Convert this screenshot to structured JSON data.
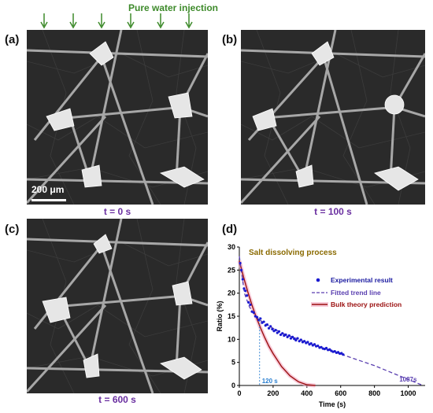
{
  "header": {
    "injection_title": "Pure water injection"
  },
  "panels": [
    {
      "letter": "(a)",
      "time": "t = 0 s",
      "scalebar": "200 μm"
    },
    {
      "letter": "(b)",
      "time": "t = 100 s"
    },
    {
      "letter": "(c)",
      "time": "t = 600 s"
    },
    {
      "letter": "(d)"
    }
  ],
  "colors": {
    "green": "#3d8a2a",
    "purple": "#6a2fa0",
    "exp_points": "#1a1ad0",
    "trend": "#5a3fb0",
    "theory": "#9b1010",
    "theory_band": "#f2a6c0",
    "annot_blue": "#2a7fd0"
  },
  "chart_data": {
    "type": "scatter",
    "title": "Salt dissolving process",
    "xlabel": "Time (s)",
    "ylabel": "Ratio (%)",
    "xlim": [
      0,
      1100
    ],
    "ylim": [
      0,
      30
    ],
    "xticks": [
      0,
      200,
      400,
      600,
      800,
      1000
    ],
    "yticks": [
      0,
      5,
      10,
      15,
      20,
      25,
      30
    ],
    "legend_position": "right",
    "series": [
      {
        "name": "Experimental result",
        "x": [
          5,
          12,
          20,
          28,
          36,
          45,
          55,
          65,
          75,
          85,
          95,
          105,
          115,
          125,
          135,
          145,
          155,
          165,
          175,
          185,
          195,
          205,
          215,
          225,
          235,
          245,
          255,
          265,
          275,
          285,
          295,
          305,
          315,
          325,
          335,
          345,
          355,
          365,
          375,
          385,
          395,
          405,
          415,
          425,
          435,
          445,
          455,
          465,
          475,
          485,
          495,
          505,
          515,
          525,
          535,
          545,
          555,
          565,
          575,
          585,
          595,
          605,
          615
        ],
        "y": [
          26.5,
          25,
          23,
          21,
          20.5,
          19.5,
          18,
          17.5,
          16,
          15.8,
          15,
          14.8,
          14.2,
          14.5,
          13.6,
          13.8,
          13,
          13.2,
          12.4,
          12.8,
          12.2,
          11.8,
          12,
          11.4,
          11.7,
          11,
          11.3,
          10.8,
          11,
          10.5,
          10.8,
          10.2,
          10.5,
          10.1,
          9.8,
          10.2,
          9.6,
          9.9,
          9.4,
          9.6,
          9.2,
          9.4,
          8.9,
          9.1,
          8.7,
          8.9,
          8.5,
          8.6,
          8.2,
          8.3,
          8,
          7.9,
          8.1,
          7.7,
          7.8,
          7.5,
          7.3,
          7.4,
          7.1,
          7.2,
          6.9,
          7,
          6.7
        ]
      },
      {
        "name": "Fitted trend line",
        "x": [
          0,
          30,
          60,
          100,
          150,
          250,
          400,
          600,
          800,
          1087
        ],
        "y": [
          28,
          20,
          17,
          14.8,
          13.4,
          11.4,
          9.3,
          6.8,
          4.3,
          0
        ]
      },
      {
        "name": "Bulk theory prediction",
        "x": [
          0,
          25,
          50,
          75,
          100,
          125,
          150,
          175,
          200,
          250,
          300,
          350,
          400,
          450
        ],
        "y": [
          27,
          23.5,
          20.3,
          17.4,
          14.8,
          12.5,
          10.4,
          8.5,
          6.9,
          4.1,
          2.1,
          0.8,
          0.15,
          0
        ]
      }
    ],
    "annotations": [
      {
        "text": "120 s",
        "x": 120,
        "y": 0
      },
      {
        "text": "1087s",
        "x": 1087,
        "y": 0
      }
    ]
  }
}
